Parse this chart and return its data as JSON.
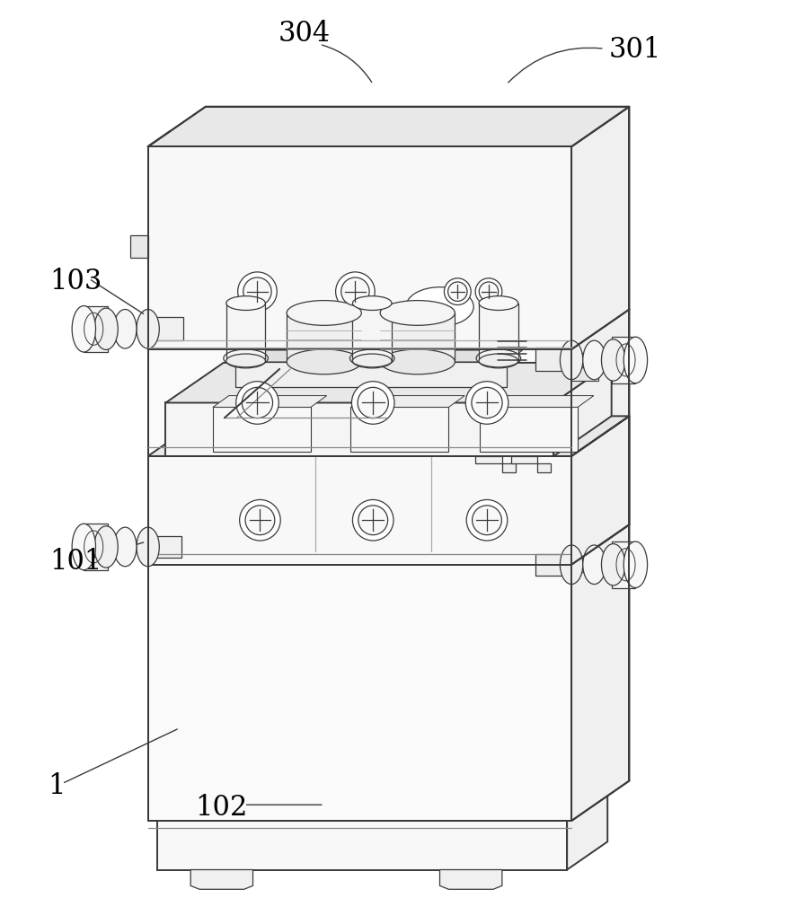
{
  "bg": "#ffffff",
  "lc": "#3a3a3a",
  "lc_light": "#888888",
  "fc_main": "#ffffff",
  "fc_side": "#f0f0f0",
  "fc_top": "#e8e8e8",
  "fc_dark": "#d8d8d8"
}
